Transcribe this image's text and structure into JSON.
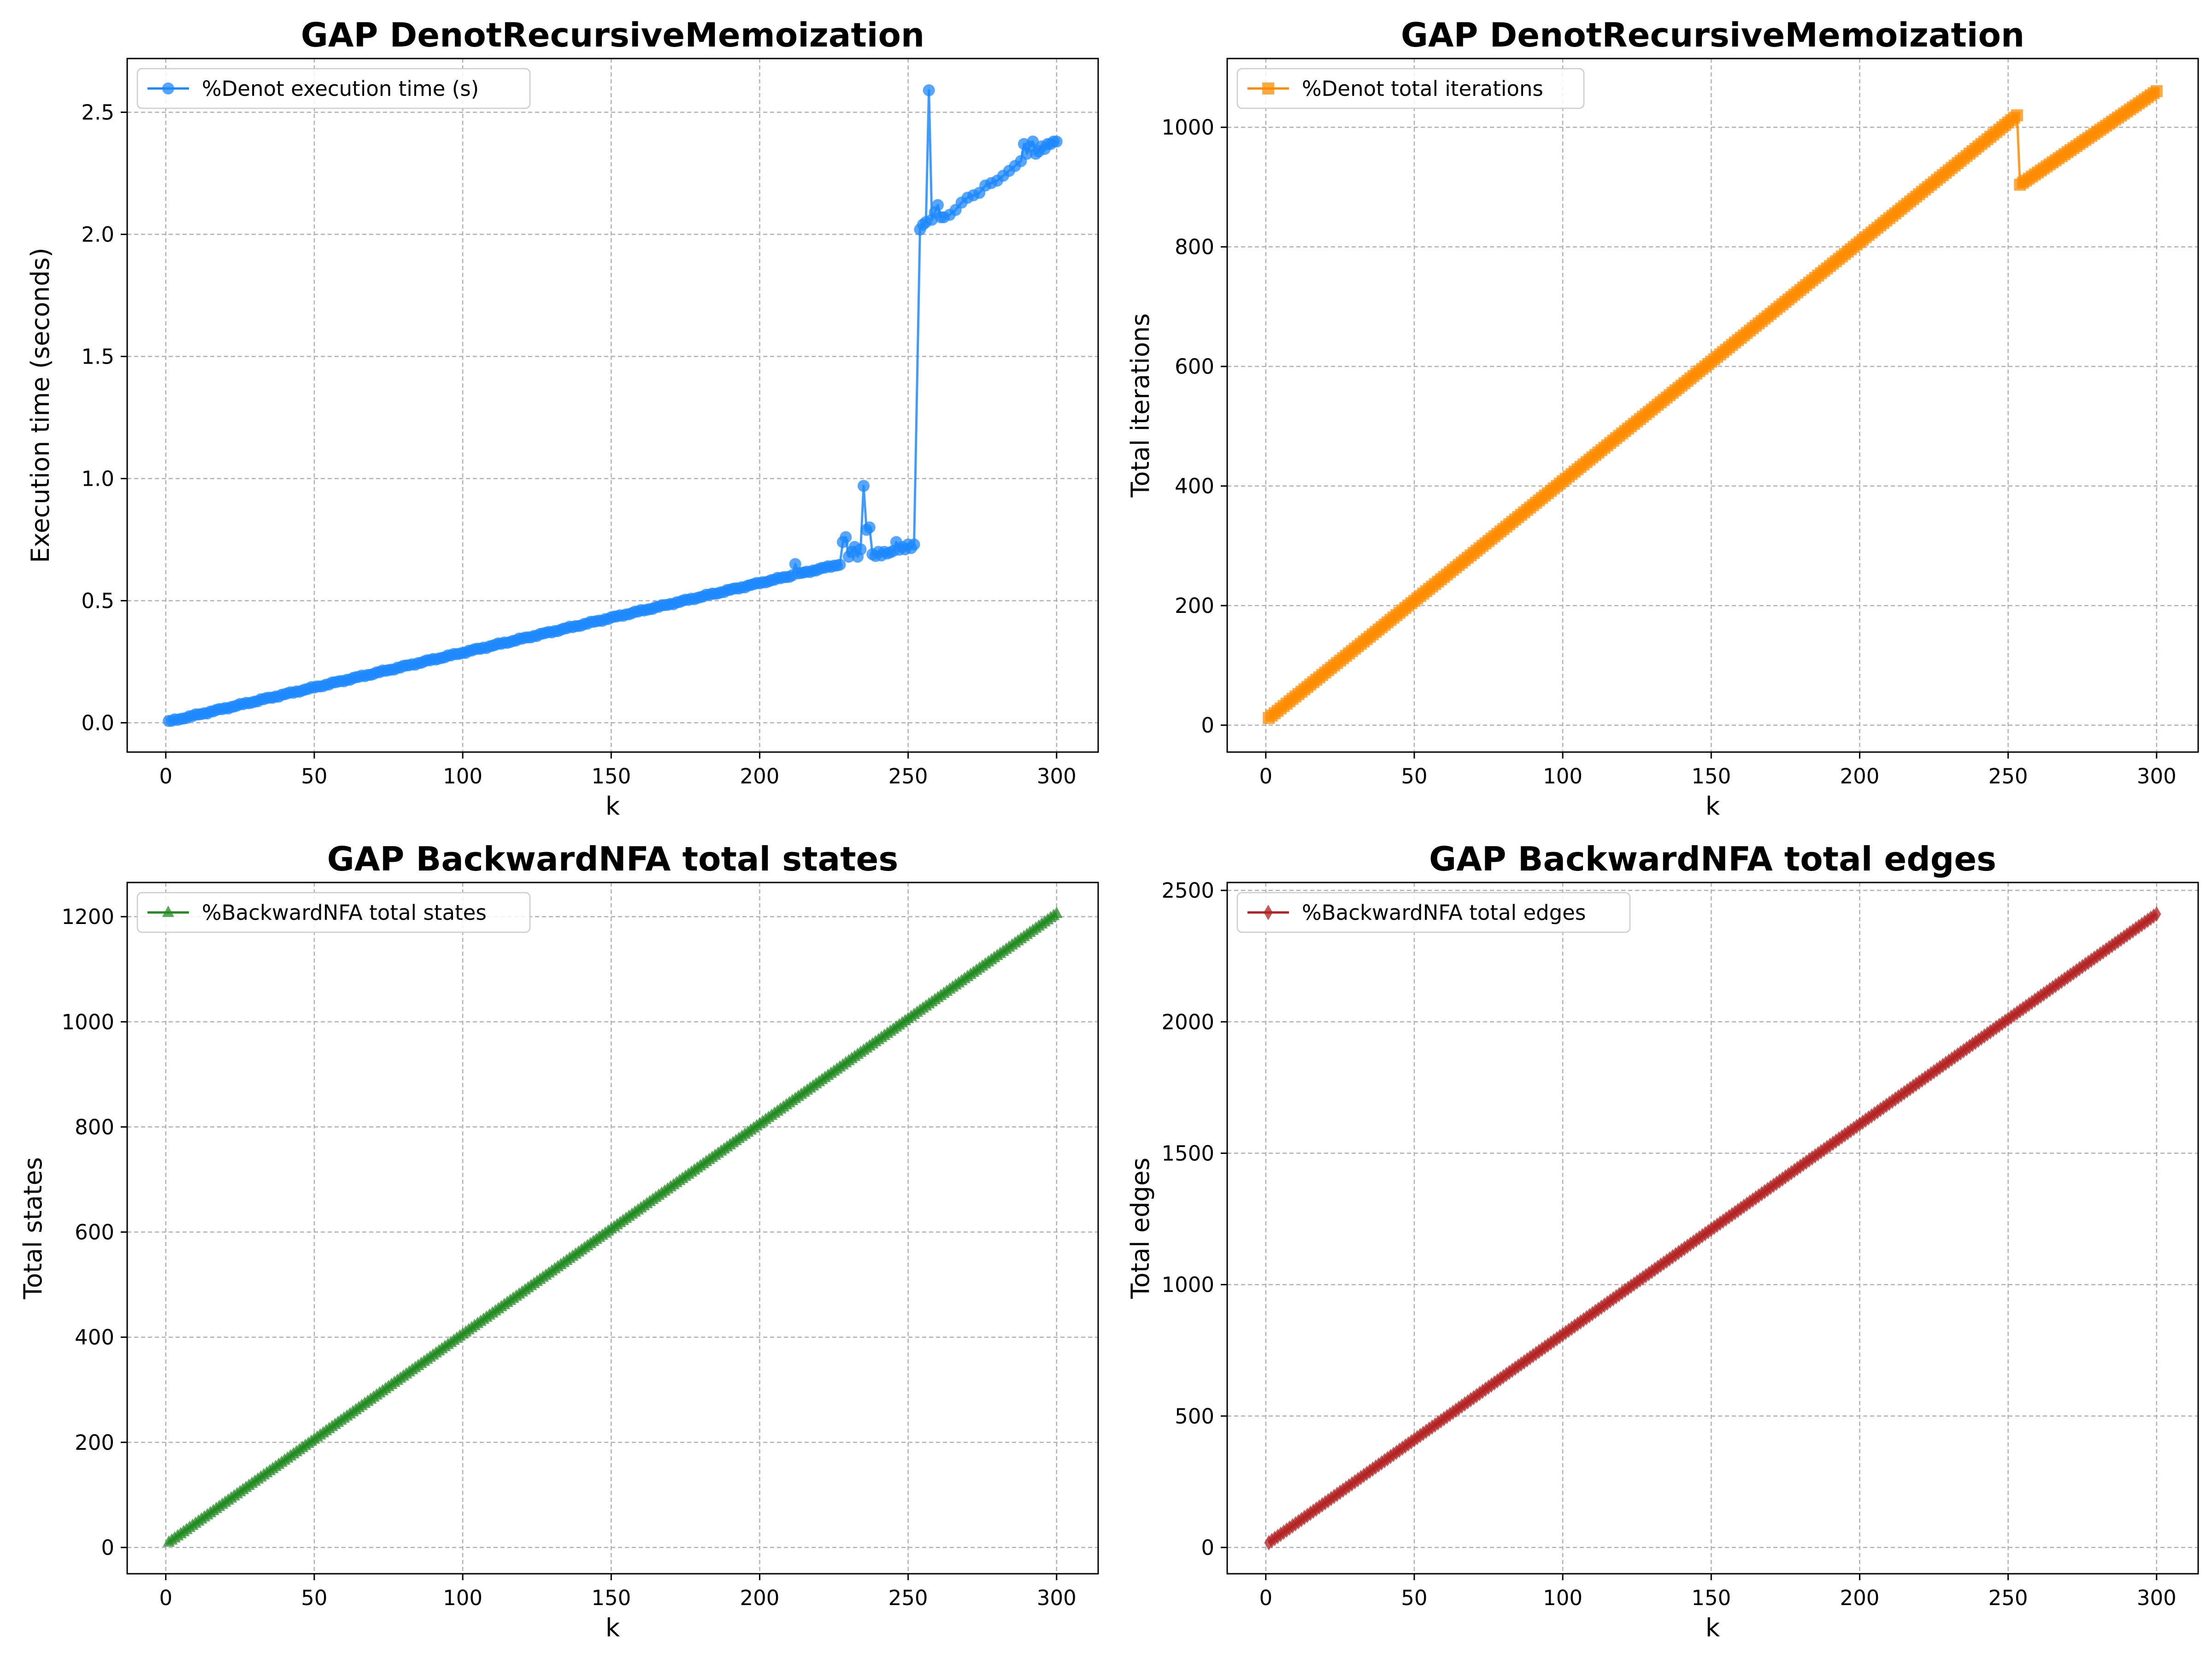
{
  "chart_data": [
    {
      "type": "line",
      "title": "GAP DenotRecursiveMemoization",
      "xlabel": "k",
      "ylabel": "Execution time (seconds)",
      "xlim": [
        -13,
        314
      ],
      "ylim": [
        -0.12,
        2.72
      ],
      "xticks": [
        0,
        50,
        100,
        150,
        200,
        250,
        300
      ],
      "yticks": [
        0.0,
        0.5,
        1.0,
        1.5,
        2.0,
        2.5
      ],
      "ytick_labels": [
        "0.0",
        "0.5",
        "1.0",
        "1.5",
        "2.0",
        "2.5"
      ],
      "grid": true,
      "legend_position": "upper-left",
      "marker": "circle",
      "series": [
        {
          "name": "%Denot execution time (s)",
          "color": "#1e88ff",
          "base": {
            "k_start": 1,
            "k_end": 252,
            "y_start": 0.005,
            "slope": 0.00285,
            "jitter_amp": 0.004
          },
          "points": [
            [
              212,
              0.65
            ],
            [
              228,
              0.74
            ],
            [
              229,
              0.76
            ],
            [
              230,
              0.68
            ],
            [
              231,
              0.7
            ],
            [
              232,
              0.72
            ],
            [
              233,
              0.68
            ],
            [
              234,
              0.71
            ],
            [
              235,
              0.97
            ],
            [
              236,
              0.79
            ],
            [
              237,
              0.8
            ],
            [
              238,
              0.69
            ],
            [
              240,
              0.7
            ],
            [
              242,
              0.7
            ],
            [
              246,
              0.74
            ],
            [
              248,
              0.72
            ],
            [
              250,
              0.73
            ],
            [
              252,
              0.73
            ],
            [
              254,
              2.02
            ],
            [
              255,
              2.04
            ],
            [
              256,
              2.05
            ],
            [
              257,
              2.59
            ],
            [
              258,
              2.06
            ],
            [
              259,
              2.09
            ],
            [
              260,
              2.12
            ],
            [
              261,
              2.07
            ],
            [
              262,
              2.07
            ],
            [
              264,
              2.08
            ],
            [
              266,
              2.1
            ],
            [
              268,
              2.13
            ],
            [
              270,
              2.15
            ],
            [
              272,
              2.16
            ],
            [
              274,
              2.17
            ],
            [
              276,
              2.2
            ],
            [
              278,
              2.21
            ],
            [
              280,
              2.22
            ],
            [
              282,
              2.24
            ],
            [
              284,
              2.26
            ],
            [
              286,
              2.28
            ],
            [
              288,
              2.3
            ],
            [
              289,
              2.37
            ],
            [
              290,
              2.33
            ],
            [
              291,
              2.36
            ],
            [
              292,
              2.38
            ],
            [
              293,
              2.33
            ],
            [
              294,
              2.34
            ],
            [
              295,
              2.36
            ],
            [
              296,
              2.35
            ],
            [
              297,
              2.37
            ],
            [
              298,
              2.37
            ],
            [
              299,
              2.38
            ],
            [
              300,
              2.38
            ]
          ]
        }
      ]
    },
    {
      "type": "line",
      "title": "GAP DenotRecursiveMemoization",
      "xlabel": "k",
      "ylabel": "Total iterations",
      "xlim": [
        -13,
        314
      ],
      "ylim": [
        -45,
        1115
      ],
      "xticks": [
        0,
        50,
        100,
        150,
        200,
        250,
        300
      ],
      "yticks": [
        0,
        200,
        400,
        600,
        800,
        1000
      ],
      "ytick_labels": [
        "0",
        "200",
        "400",
        "600",
        "800",
        "1000"
      ],
      "grid": true,
      "legend_position": "upper-left",
      "marker": "square",
      "series": [
        {
          "name": "%Denot total iterations",
          "color": "#ff8c00",
          "segments": [
            {
              "k_start": 1,
              "k_end": 253,
              "y_start": 12,
              "slope": 4.0
            },
            {
              "k_start": 254,
              "k_end": 300,
              "y_start": 904,
              "slope": 3.4
            }
          ]
        }
      ]
    },
    {
      "type": "line",
      "title": "GAP BackwardNFA total states",
      "xlabel": "k",
      "ylabel": "Total states",
      "xlim": [
        -13,
        314
      ],
      "ylim": [
        -50,
        1265
      ],
      "xticks": [
        0,
        50,
        100,
        150,
        200,
        250,
        300
      ],
      "yticks": [
        0,
        200,
        400,
        600,
        800,
        1000,
        1200
      ],
      "ytick_labels": [
        "0",
        "200",
        "400",
        "600",
        "800",
        "1000",
        "1200"
      ],
      "grid": true,
      "legend_position": "upper-left",
      "marker": "triangle",
      "series": [
        {
          "name": "%BackwardNFA total states",
          "color": "#228b22",
          "segments": [
            {
              "k_start": 1,
              "k_end": 300,
              "y_start": 10,
              "slope": 4.0
            }
          ]
        }
      ]
    },
    {
      "type": "line",
      "title": "GAP BackwardNFA total edges",
      "xlabel": "k",
      "ylabel": "Total edges",
      "xlim": [
        -13,
        314
      ],
      "ylim": [
        -100,
        2530
      ],
      "xticks": [
        0,
        50,
        100,
        150,
        200,
        250,
        300
      ],
      "yticks": [
        0,
        500,
        1000,
        1500,
        2000,
        2500
      ],
      "ytick_labels": [
        "0",
        "500",
        "1000",
        "1500",
        "2000",
        "2500"
      ],
      "grid": true,
      "legend_position": "upper-left",
      "marker": "diamond",
      "series": [
        {
          "name": "%BackwardNFA total edges",
          "color": "#b22222",
          "segments": [
            {
              "k_start": 1,
              "k_end": 300,
              "y_start": 18,
              "slope": 8.0
            }
          ]
        }
      ]
    }
  ]
}
